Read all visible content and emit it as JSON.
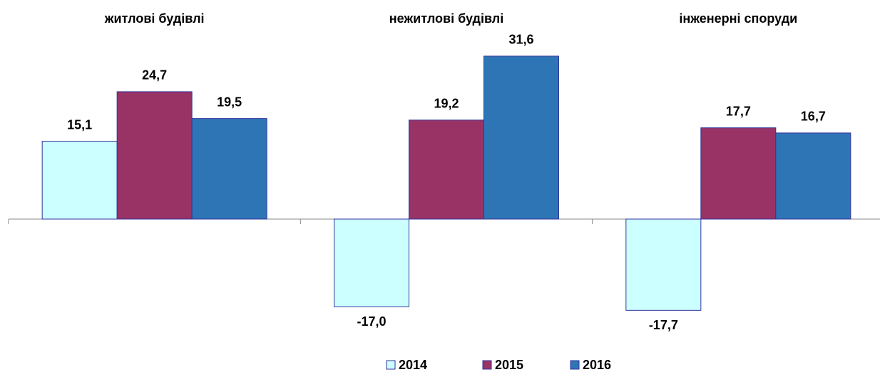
{
  "chart_data": {
    "type": "bar",
    "categories": [
      "житлові будівлі",
      "нежитлові будівлі",
      "інженерні споруди"
    ],
    "series": [
      {
        "name": "2014",
        "color": "#ccffff",
        "values": [
          15.1,
          -17.0,
          -17.7
        ],
        "value_labels": [
          "15,1",
          "-17,0",
          "-17,7"
        ]
      },
      {
        "name": "2015",
        "color": "#993366",
        "values": [
          24.7,
          19.2,
          17.7
        ],
        "value_labels": [
          "24,7",
          "19,2",
          "17,7"
        ]
      },
      {
        "name": "2016",
        "color": "#2e75b6",
        "values": [
          19.5,
          31.6,
          16.7
        ],
        "value_labels": [
          "19,5",
          "31,6",
          "16,7"
        ]
      }
    ],
    "ylim": [
      -20,
      35
    ],
    "legend": "bottom"
  }
}
